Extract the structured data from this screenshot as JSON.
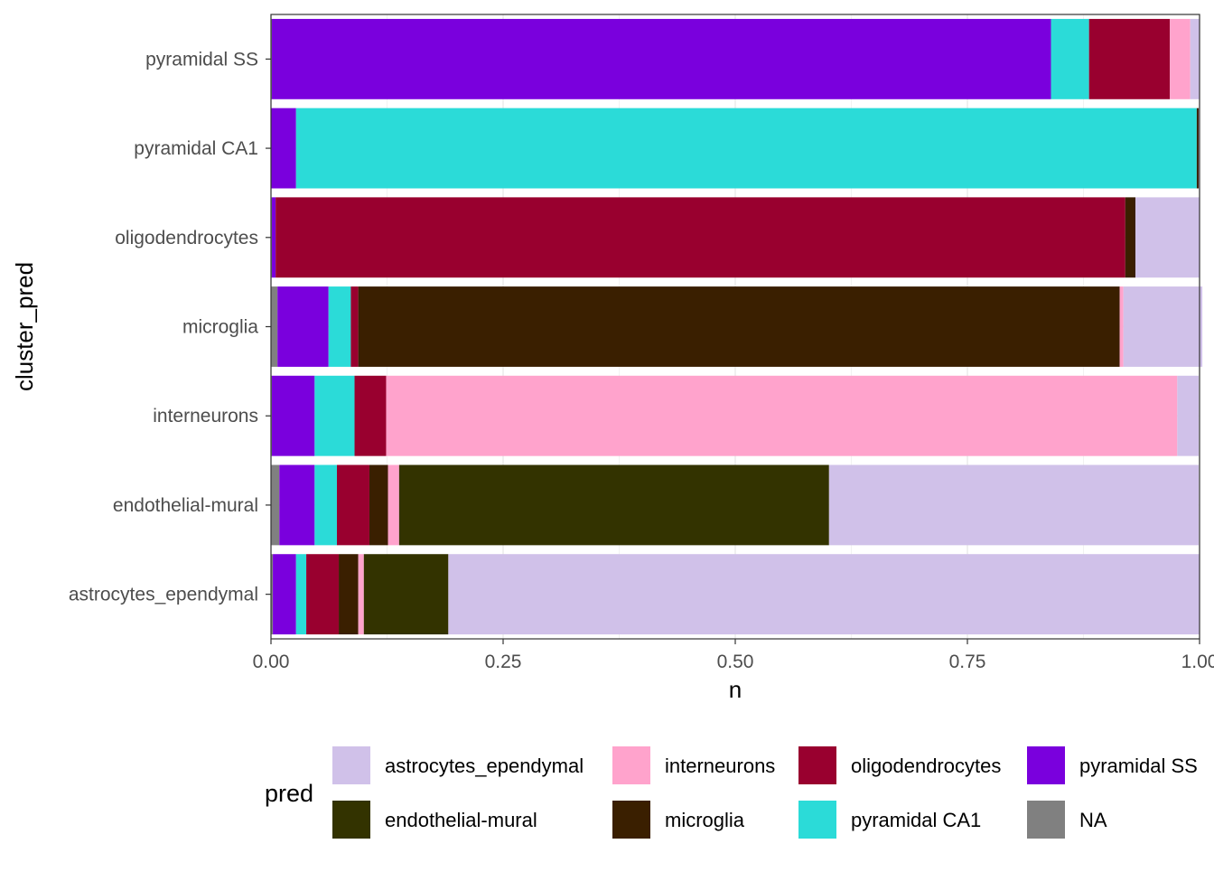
{
  "chart_data": {
    "type": "bar",
    "orientation": "horizontal",
    "stacked": true,
    "xlabel": "n",
    "ylabel": "cluster_pred",
    "xlim": [
      0,
      1
    ],
    "x_ticks": [
      "0.00",
      "0.25",
      "0.50",
      "0.75",
      "1.00"
    ],
    "x_tick_values": [
      0,
      0.25,
      0.5,
      0.75,
      1.0
    ],
    "grid": true,
    "categories": [
      "astrocytes_ependymal",
      "endothelial-mural",
      "interneurons",
      "microglia",
      "oligodendrocytes",
      "pyramidal CA1",
      "pyramidal SS"
    ],
    "stack_order": [
      "NA",
      "pyramidal SS",
      "pyramidal CA1",
      "oligodendrocytes",
      "microglia",
      "interneurons",
      "endothelial-mural",
      "astrocytes_ependymal"
    ],
    "series": [
      {
        "name": "astrocytes_ependymal",
        "color": "#D0C1E9",
        "values": [
          0.809,
          0.398,
          0.023,
          0.085,
          0.069,
          0.001,
          0.01
        ]
      },
      {
        "name": "endothelial-mural",
        "color": "#333300",
        "values": [
          0.091,
          0.463,
          0.0,
          0.0,
          0.0,
          0.0,
          0.0
        ]
      },
      {
        "name": "interneurons",
        "color": "#FFA3CC",
        "values": [
          0.006,
          0.012,
          0.852,
          0.004,
          0.0,
          0.0,
          0.022
        ]
      },
      {
        "name": "microglia",
        "color": "#3A1F00",
        "values": [
          0.021,
          0.02,
          0.0,
          0.82,
          0.011,
          0.002,
          0.0
        ]
      },
      {
        "name": "oligodendrocytes",
        "color": "#99002F",
        "values": [
          0.035,
          0.035,
          0.034,
          0.008,
          0.915,
          0.0,
          0.087
        ]
      },
      {
        "name": "pyramidal CA1",
        "color": "#2BDBD8",
        "values": [
          0.011,
          0.024,
          0.043,
          0.024,
          0.0,
          0.97,
          0.041
        ]
      },
      {
        "name": "pyramidal SS",
        "color": "#7A00DD",
        "values": [
          0.025,
          0.038,
          0.046,
          0.055,
          0.004,
          0.027,
          0.839
        ]
      },
      {
        "name": "NA",
        "color": "#808080",
        "values": [
          0.002,
          0.009,
          0.001,
          0.007,
          0.001,
          0.0,
          0.001
        ]
      }
    ],
    "legend": {
      "title": "pred",
      "position": "bottom",
      "items": [
        {
          "label": "astrocytes_ependymal",
          "color": "#D0C1E9"
        },
        {
          "label": "endothelial-mural",
          "color": "#333300"
        },
        {
          "label": "interneurons",
          "color": "#FFA3CC"
        },
        {
          "label": "microglia",
          "color": "#3A1F00"
        },
        {
          "label": "oligodendrocytes",
          "color": "#99002F"
        },
        {
          "label": "pyramidal CA1",
          "color": "#2BDBD8"
        },
        {
          "label": "pyramidal SS",
          "color": "#7A00DD"
        },
        {
          "label": "NA",
          "color": "#808080"
        }
      ]
    }
  }
}
